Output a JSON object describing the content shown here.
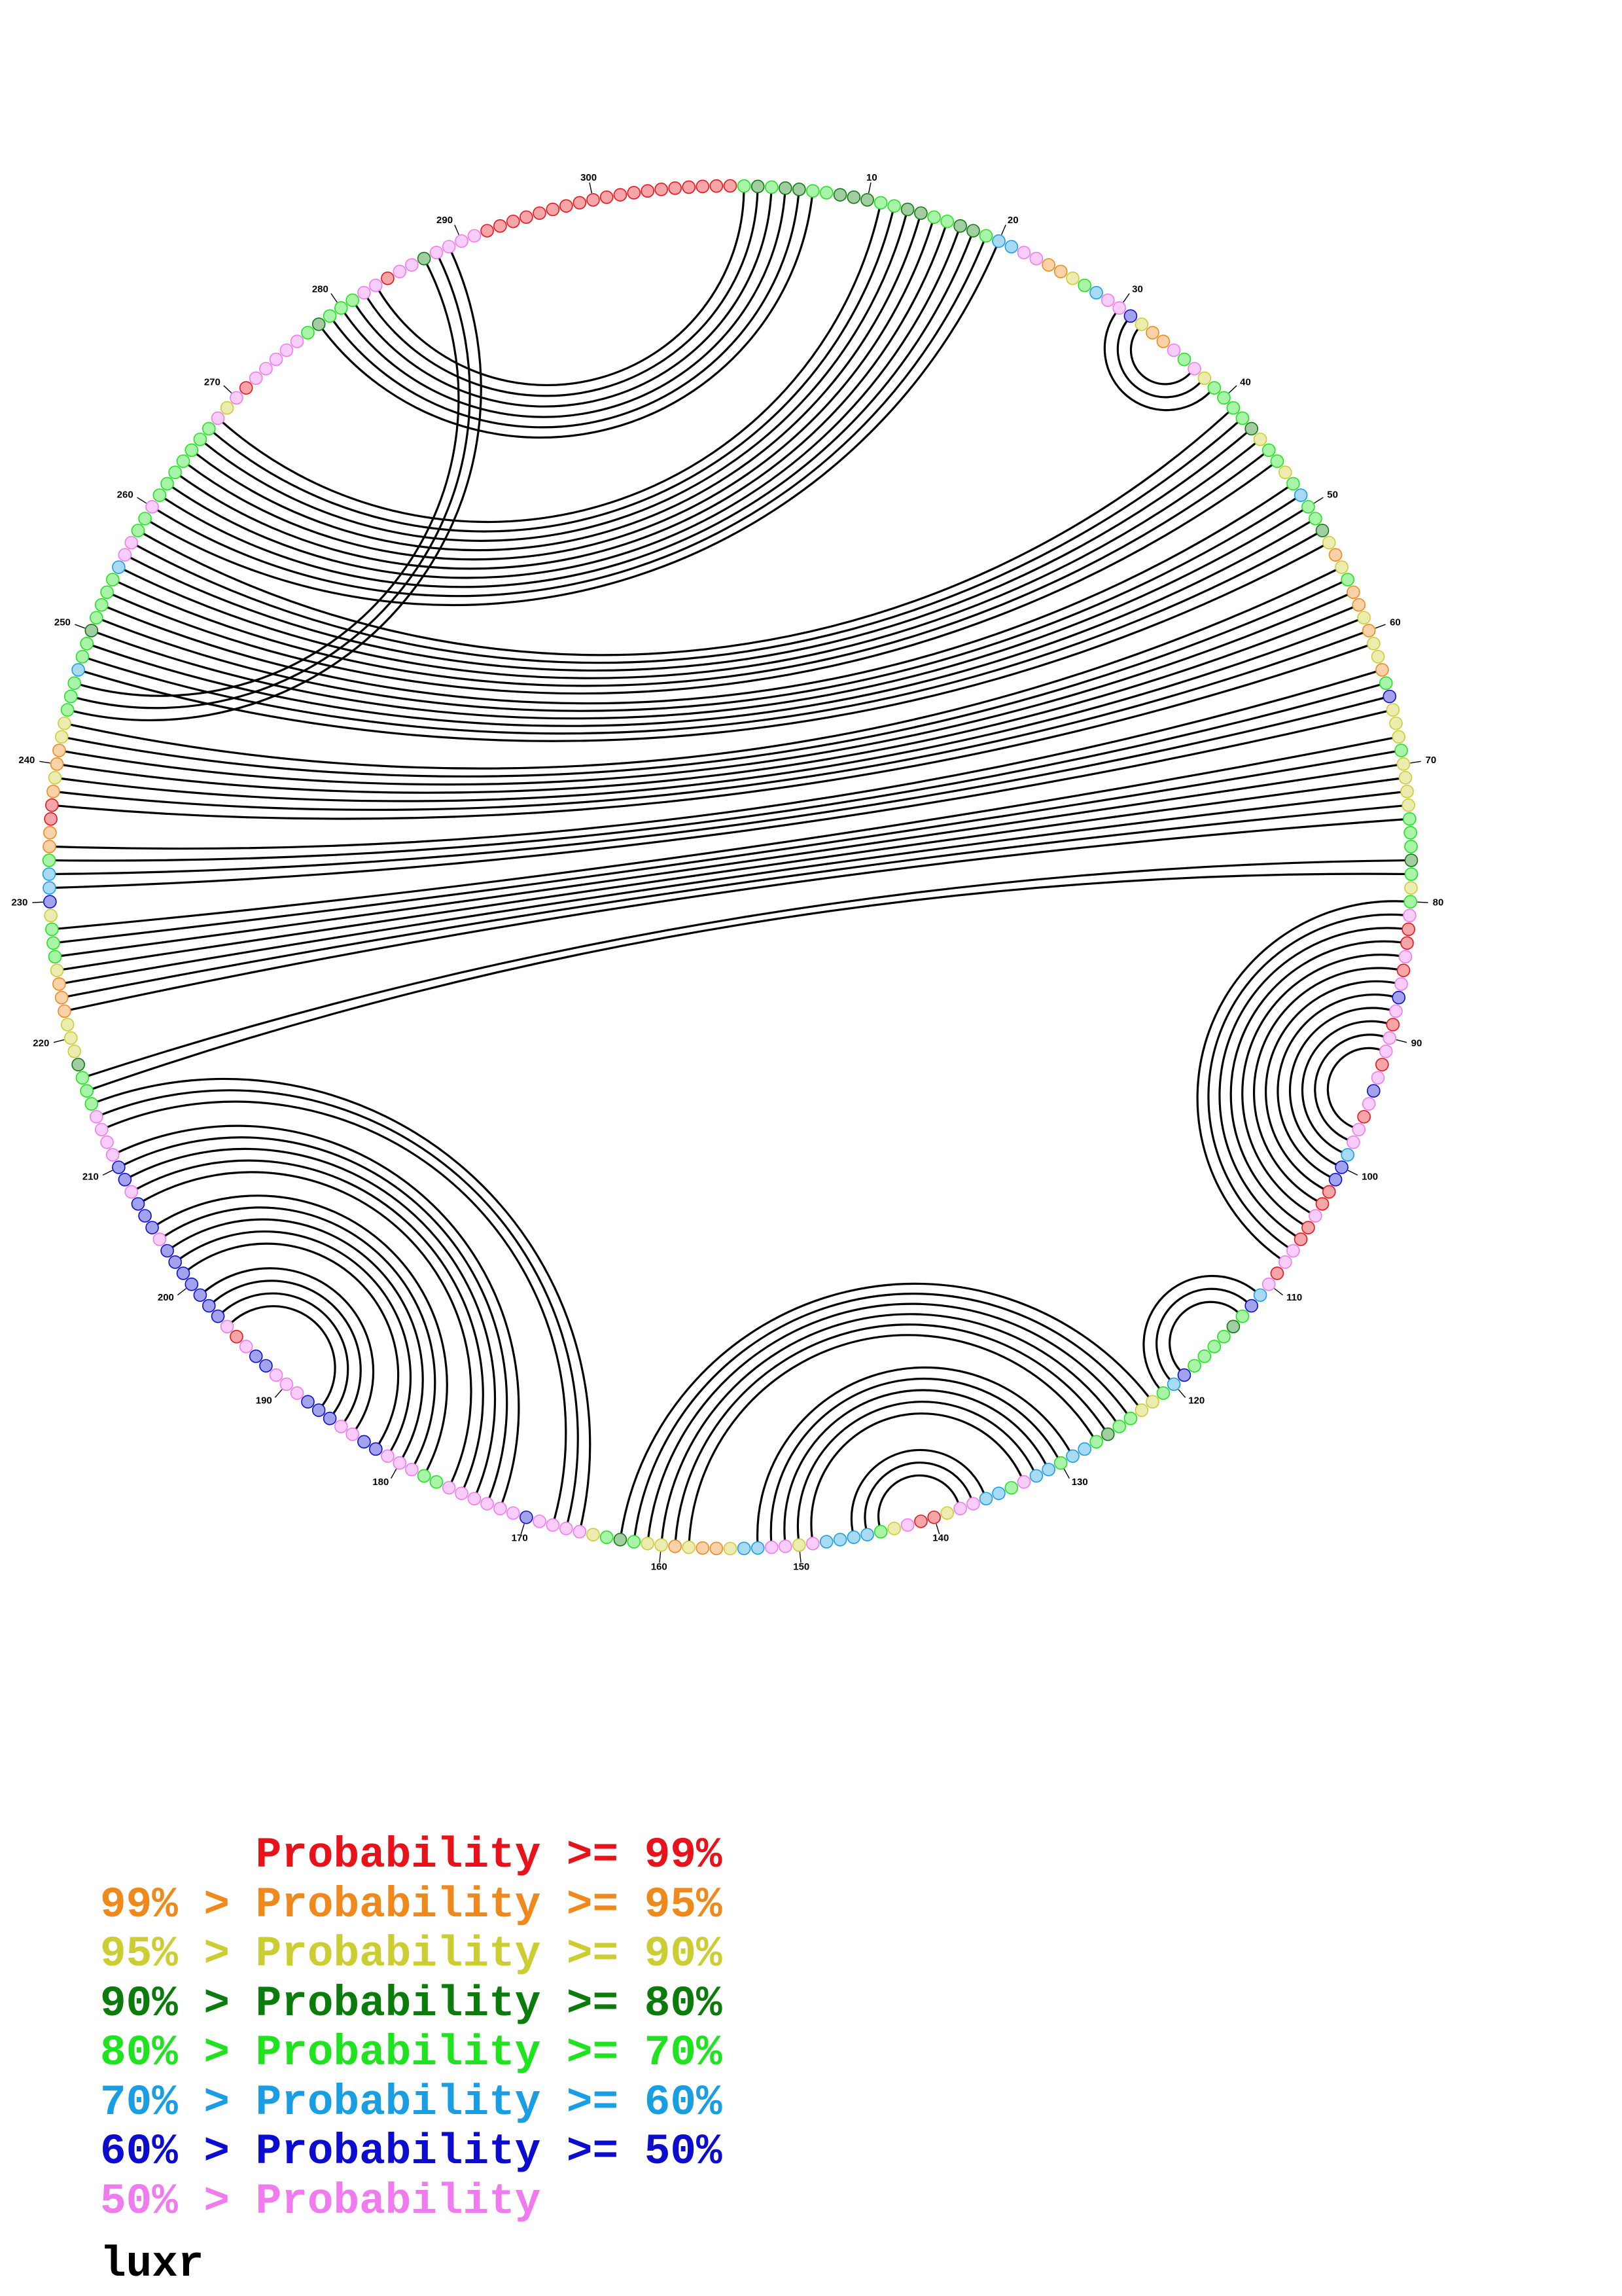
{
  "molecule_name": "luxr",
  "legend": [
    {
      "text": "Probability >= 99%",
      "color": "#e8131a"
    },
    {
      "text": "99% > Probability >= 95%",
      "color": "#f0891c"
    },
    {
      "text": "95% > Probability >= 90%",
      "color": "#cccc33"
    },
    {
      "text": "90% > Probability >= 80%",
      "color": "#0b7b0b"
    },
    {
      "text": "80% > Probability >= 70%",
      "color": "#1ee31e"
    },
    {
      "text": "70% > Probability >= 60%",
      "color": "#199ee3"
    },
    {
      "text": "60% > Probability >= 50%",
      "color": "#0c0ccf"
    },
    {
      "text": "50% > Probability",
      "color": "#ef7bef"
    }
  ],
  "diagram": {
    "position_labels": [
      "10",
      "20",
      "30",
      "40",
      "50",
      "60",
      "70",
      "80",
      "90",
      "100",
      "110",
      "120",
      "130",
      "140",
      "150",
      "160",
      "170",
      "180",
      "190",
      "200",
      "210",
      "220",
      "230",
      "240",
      "250",
      "260",
      "270",
      "280",
      "290",
      "300"
    ],
    "nucleotide_probability_classes": [
      "4343344333",
      "4433443345",
      "5771124577",
      "6211747244",
      "4432442454",
      "4321241121",
      "2214622242",
      "2224443424",
      "7007076707",
      "7076707756",
      "6007007707",
      "5643444465",
      "4224434554",
      "5574557720",
      "0724555572",
      "7755211212",
      "2434277776",
      "7777774477",
      "7667766677",
      "7667076666",
      "6667666766",
      "7777444322",
      "2111244426",
      "5541100121",
      "1224445443",
      "4444577447",
      "4444444727",
      "0777774344",
      "4770773777",
      "7000000000",
      "0000000000"
    ],
    "base_pairs": [
      [
        1,
        283
      ],
      [
        2,
        282
      ],
      [
        3,
        281
      ],
      [
        4,
        280
      ],
      [
        5,
        279
      ],
      [
        6,
        278
      ],
      [
        11,
        268
      ],
      [
        12,
        267
      ],
      [
        13,
        266
      ],
      [
        14,
        265
      ],
      [
        15,
        264
      ],
      [
        16,
        263
      ],
      [
        17,
        262
      ],
      [
        18,
        261
      ],
      [
        19,
        260
      ],
      [
        20,
        259
      ],
      [
        30,
        39
      ],
      [
        31,
        38
      ],
      [
        32,
        37
      ],
      [
        41,
        258
      ],
      [
        42,
        257
      ],
      [
        43,
        256
      ],
      [
        44,
        255
      ],
      [
        45,
        254
      ],
      [
        46,
        253
      ],
      [
        48,
        252
      ],
      [
        49,
        251
      ],
      [
        50,
        250
      ],
      [
        51,
        249
      ],
      [
        52,
        248
      ],
      [
        53,
        247
      ],
      [
        287,
        246
      ],
      [
        288,
        245
      ],
      [
        289,
        244
      ],
      [
        55,
        243
      ],
      [
        56,
        242
      ],
      [
        57,
        241
      ],
      [
        58,
        240
      ],
      [
        59,
        239
      ],
      [
        60,
        238
      ],
      [
        61,
        237
      ],
      [
        63,
        234
      ],
      [
        64,
        233
      ],
      [
        65,
        232
      ],
      [
        66,
        231
      ],
      [
        68,
        228
      ],
      [
        69,
        227
      ],
      [
        70,
        226
      ],
      [
        71,
        225
      ],
      [
        72,
        224
      ],
      [
        73,
        223
      ],
      [
        74,
        222
      ],
      [
        77,
        217
      ],
      [
        78,
        216
      ],
      [
        80,
        108
      ],
      [
        81,
        107
      ],
      [
        82,
        106
      ],
      [
        83,
        105
      ],
      [
        84,
        104
      ],
      [
        85,
        103
      ],
      [
        86,
        102
      ],
      [
        87,
        101
      ],
      [
        88,
        100
      ],
      [
        89,
        99
      ],
      [
        90,
        98
      ],
      [
        91,
        97
      ],
      [
        111,
        121
      ],
      [
        112,
        120
      ],
      [
        113,
        119
      ],
      [
        122,
        163
      ],
      [
        123,
        162
      ],
      [
        124,
        161
      ],
      [
        125,
        160
      ],
      [
        126,
        159
      ],
      [
        127,
        158
      ],
      [
        129,
        153
      ],
      [
        130,
        152
      ],
      [
        131,
        151
      ],
      [
        132,
        150
      ],
      [
        133,
        149
      ],
      [
        136,
        146
      ],
      [
        137,
        145
      ],
      [
        138,
        144
      ],
      [
        166,
        215
      ],
      [
        167,
        214
      ],
      [
        168,
        213
      ],
      [
        172,
        211
      ],
      [
        173,
        210
      ],
      [
        174,
        209
      ],
      [
        175,
        208
      ],
      [
        176,
        207
      ],
      [
        178,
        205
      ],
      [
        179,
        204
      ],
      [
        180,
        203
      ],
      [
        181,
        202
      ],
      [
        182,
        201
      ],
      [
        184,
        199
      ],
      [
        185,
        198
      ],
      [
        186,
        197
      ],
      [
        187,
        196
      ]
    ]
  }
}
